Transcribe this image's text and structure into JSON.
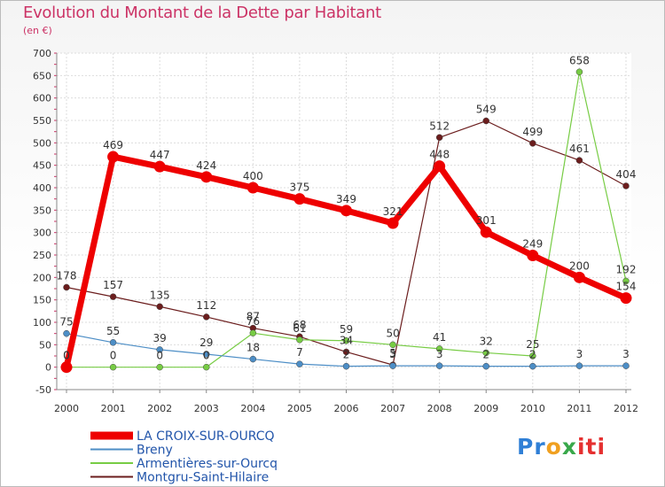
{
  "chart_data": {
    "type": "line",
    "title": "Evolution du Montant de la Dette par Habitant",
    "subtitle": "(en €)",
    "x": [
      "2000",
      "2001",
      "2002",
      "2003",
      "2004",
      "2005",
      "2006",
      "2007",
      "2008",
      "2009",
      "2010",
      "2011",
      "2012"
    ],
    "ylim": [
      -50,
      700
    ],
    "yticks": [
      -50,
      0,
      50,
      100,
      150,
      200,
      250,
      300,
      350,
      400,
      450,
      500,
      550,
      600,
      650,
      700
    ],
    "grid": true,
    "legend_position": "bottom-left",
    "series": [
      {
        "name": "LA CROIX-SUR-OURCQ",
        "color": "#ee0000",
        "values": [
          0,
          469,
          447,
          424,
          400,
          375,
          349,
          321,
          448,
          301,
          249,
          200,
          154
        ],
        "labels": [
          "0",
          "469",
          "447",
          "424",
          "400",
          "375",
          "349",
          "321",
          "448",
          "301",
          "249",
          "200",
          "154"
        ]
      },
      {
        "name": "Breny",
        "color": "#4d8ec6",
        "values": [
          75,
          55,
          39,
          29,
          18,
          7,
          2,
          3,
          3,
          2,
          2,
          3,
          3
        ],
        "labels": [
          "75",
          "55",
          "39",
          "29",
          "18",
          "7",
          "2",
          "3",
          "3",
          "2",
          "2",
          "3",
          "3"
        ]
      },
      {
        "name": "Armentières-sur-Ourcq",
        "color": "#77cc44",
        "values": [
          0,
          0,
          0,
          0,
          76,
          61,
          59,
          50,
          41,
          32,
          25,
          658,
          192
        ],
        "labels": [
          "0",
          "0",
          "0",
          "0",
          "76",
          "61",
          "59",
          "50",
          "41",
          "32",
          "25",
          "658",
          "192"
        ]
      },
      {
        "name": "Montgru-Saint-Hilaire",
        "color": "#6b1d1d",
        "values": [
          178,
          157,
          135,
          112,
          87,
          68,
          34,
          5,
          512,
          549,
          499,
          461,
          404
        ],
        "labels": [
          "178",
          "157",
          "135",
          "112",
          "87",
          "68",
          "34",
          "5",
          "512",
          "549",
          "499",
          "461",
          "404"
        ]
      }
    ]
  },
  "logo": {
    "p1": "Pr",
    "p2": "o",
    "p3": "x",
    "p4": "iti"
  }
}
